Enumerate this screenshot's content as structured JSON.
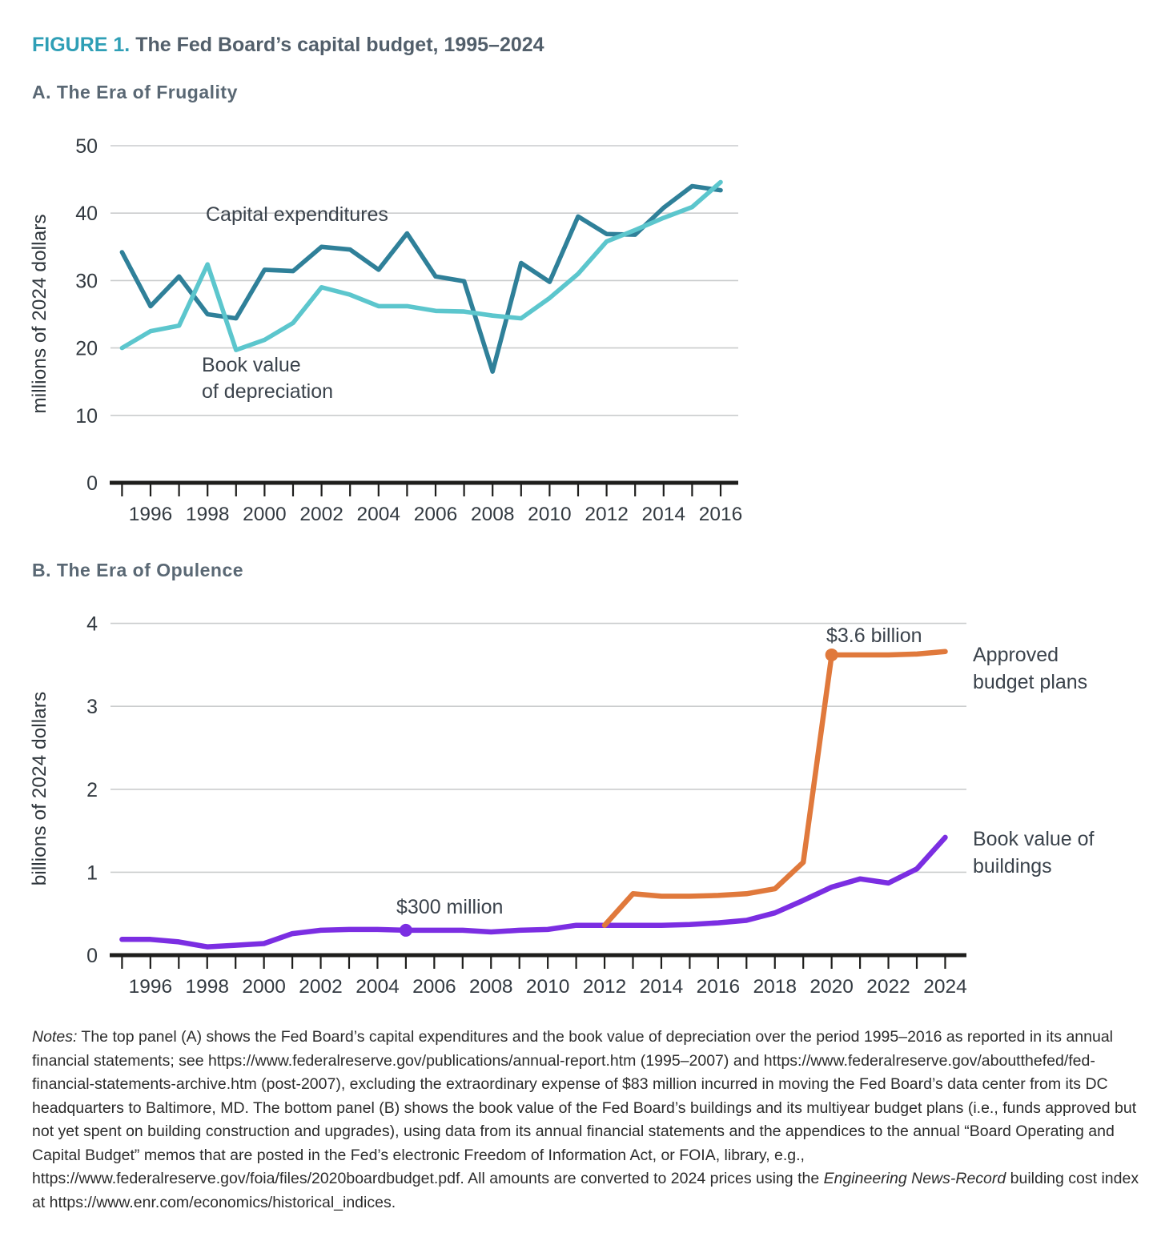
{
  "figure": {
    "label": "FIGURE 1.",
    "title": "The Fed Board’s capital budget, 1995–2024"
  },
  "chart_data": [
    {
      "type": "line",
      "title": "A. The Era of Frugality",
      "xlabel": "",
      "ylabel": "millions of 2024 dollars",
      "xlim": [
        1995,
        2016
      ],
      "ylim": [
        0,
        50
      ],
      "yticks": [
        0,
        10,
        20,
        30,
        40,
        50
      ],
      "xticks_labeled": [
        1996,
        1998,
        2000,
        2002,
        2004,
        2006,
        2008,
        2010,
        2012,
        2014,
        2016
      ],
      "grid": "horizontal",
      "legend_position": "inline-labels",
      "series": [
        {
          "name": "Capital expenditures",
          "color": "#2f8099",
          "values": [
            34.2,
            26.2,
            30.6,
            25.0,
            24.4,
            31.6,
            31.4,
            35.0,
            34.6,
            31.6,
            37.0,
            30.6,
            29.9,
            16.5,
            32.6,
            29.8,
            39.5,
            36.9,
            36.8,
            40.8,
            44.0,
            43.4
          ]
        },
        {
          "name": "Book value of depreciation",
          "label_lines": [
            "Book value",
            "of depreciation"
          ],
          "color": "#5cc6cd",
          "values": [
            20.0,
            22.5,
            23.3,
            32.4,
            19.7,
            21.2,
            23.7,
            29.0,
            27.9,
            26.2,
            26.2,
            25.5,
            25.4,
            24.8,
            24.4,
            27.4,
            31.0,
            35.8,
            37.5,
            39.3,
            40.9,
            44.6
          ]
        }
      ]
    },
    {
      "type": "line",
      "title": "B. The Era of Opulence",
      "xlabel": "",
      "ylabel": "billions of 2024 dollars",
      "xlim": [
        1995,
        2024
      ],
      "ylim": [
        0,
        4
      ],
      "yticks": [
        0,
        1,
        2,
        3,
        4
      ],
      "xticks_labeled": [
        1996,
        1998,
        2000,
        2002,
        2004,
        2006,
        2008,
        2010,
        2012,
        2014,
        2016,
        2018,
        2020,
        2022,
        2024
      ],
      "grid": "horizontal",
      "legend_position": "inline-labels",
      "series": [
        {
          "name": "Book value of buildings",
          "label_lines": [
            "Book value of",
            "buildings"
          ],
          "color": "#7b2ee2",
          "values": [
            0.19,
            0.19,
            0.16,
            0.1,
            0.12,
            0.14,
            0.26,
            0.3,
            0.31,
            0.31,
            0.3,
            0.3,
            0.3,
            0.28,
            0.3,
            0.31,
            0.36,
            0.36,
            0.36,
            0.36,
            0.37,
            0.39,
            0.42,
            0.51,
            0.66,
            0.82,
            0.92,
            0.87,
            1.04,
            1.42
          ]
        },
        {
          "name": "Approved budget plans",
          "label_lines": [
            "Approved",
            "budget plans"
          ],
          "color": "#e0793c",
          "x_start": 2012,
          "values": [
            0.36,
            0.74,
            0.71,
            0.71,
            0.72,
            0.74,
            0.8,
            1.12,
            3.62,
            3.62,
            3.62,
            3.63,
            3.66
          ]
        }
      ],
      "annotations": [
        {
          "text": "$3.6 billion",
          "year": 2020,
          "value": 3.62,
          "series_index": 1
        },
        {
          "text": "$300 million",
          "year": 2005,
          "value": 0.3,
          "series_index": 0
        }
      ]
    }
  ],
  "notes": {
    "segments": [
      {
        "text": "Notes:",
        "italic": true
      },
      {
        "text": " The top panel (A) shows the Fed Board’s capital expenditures and the book value of depreciation over the period 1995–2016 as reported in its annual financial statements; see https://www.federalreserve.gov/publications/annual-report.htm (1995–2007) and https://www.federalreserve.gov/aboutthefed/fed-financial-statements-archive.htm (post-2007), excluding the extraordinary expense of $83 million incurred in moving the Fed Board’s data center from its DC headquarters to Baltimore, MD.  The bottom panel (B) shows the book value of the Fed Board’s buildings and its multiyear budget plans (i.e., funds approved but not yet spent on building construction and upgrades), using data from its annual financial statements and the appendices to the annual “Board Operating and Capital Budget” memos that are posted in the Fed’s electronic Freedom of Information Act, or FOIA, library, e.g., https://www.federalreserve.gov/foia/files/2020boardbudget.pdf. All amounts are converted to 2024 prices using the ",
        "italic": false
      },
      {
        "text": "Engineering News-Record",
        "italic": true
      },
      {
        "text": " building cost index at https://www.enr.com/economics/historical_indices.",
        "italic": false
      }
    ]
  }
}
